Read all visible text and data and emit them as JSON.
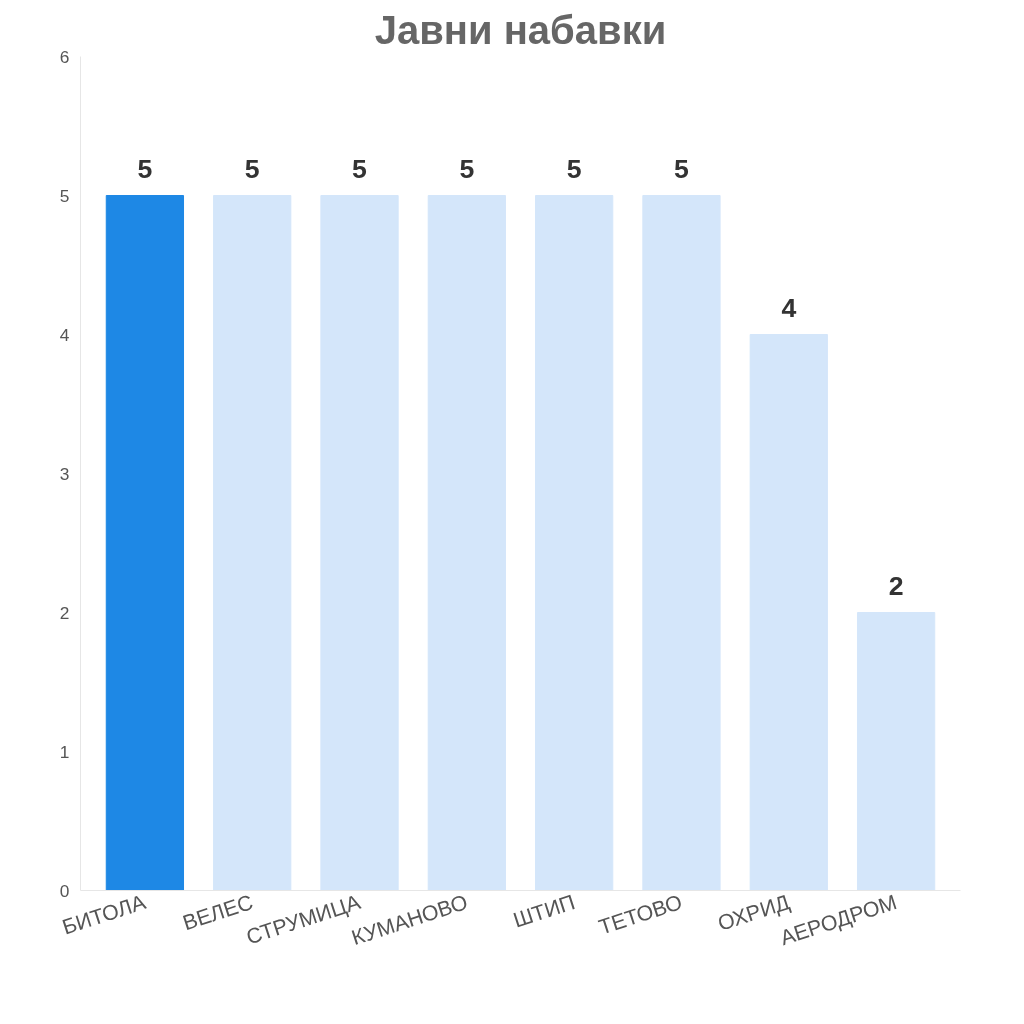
{
  "chart_data": {
    "type": "bar",
    "title": "Јавни набавки",
    "categories": [
      "БИТОЛА",
      "ВЕЛЕС",
      "СТРУМИЦА",
      "КУМАНОВО",
      "ШТИП",
      "ТЕТОВО",
      "ОХРИД",
      "АЕРОДРОМ"
    ],
    "values": [
      5,
      5,
      5,
      5,
      5,
      5,
      4,
      2
    ],
    "colors": [
      "#1e88e5",
      "#d4e6fa",
      "#d4e6fa",
      "#d4e6fa",
      "#d4e6fa",
      "#d4e6fa",
      "#d4e6fa",
      "#d4e6fa"
    ],
    "ylim": [
      0,
      6
    ],
    "yticks": [
      0,
      1,
      2,
      3,
      4,
      5,
      6
    ],
    "grid": false,
    "data_labels": true
  }
}
